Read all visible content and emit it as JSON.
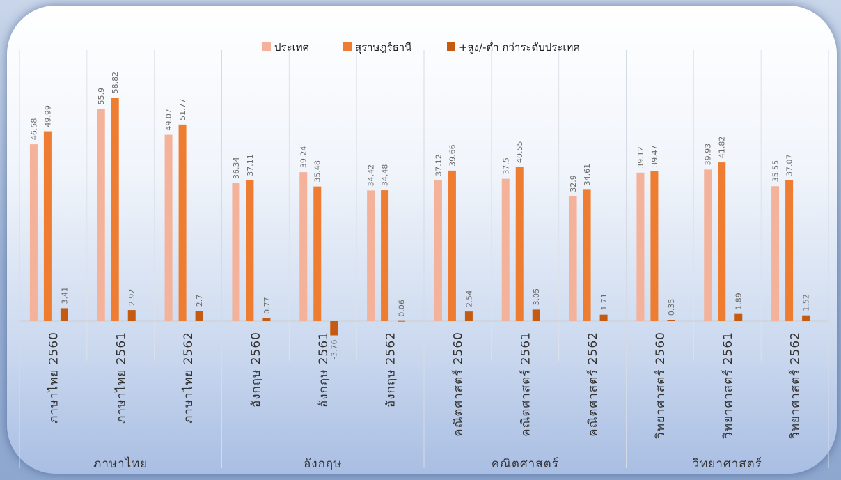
{
  "chart_data": {
    "type": "bar",
    "categories": [
      "ภาษาไทย 2560",
      "ภาษาไทย 2561",
      "ภาษาไทย 2562",
      "อังกฤษ 2560",
      "อังกฤษ 2561",
      "อังกฤษ 2562",
      "คณิตศาสตร์ 2560",
      "คณิตศาสตร์ 2561",
      "คณิตศาสตร์ 2562",
      "วิทยาศาสตร์ 2560",
      "วิทยาศาสตร์ 2561",
      "วิทยาศาสตร์ 2562"
    ],
    "groups": [
      "ภาษาไทย",
      "อังกฤษ",
      "คณิตศาสตร์",
      "วิทยาศาสตร์"
    ],
    "series": [
      {
        "name": "ประเทศ",
        "color": "#f4b29a",
        "values": [
          46.58,
          55.9,
          49.07,
          36.34,
          39.24,
          34.42,
          37.12,
          37.5,
          32.9,
          39.12,
          39.93,
          35.55
        ]
      },
      {
        "name": "สุราษฎร์ธานี",
        "color": "#ee7d31",
        "values": [
          49.99,
          58.82,
          51.77,
          37.11,
          35.48,
          34.48,
          39.66,
          40.55,
          34.61,
          39.47,
          41.82,
          37.07
        ]
      },
      {
        "name": "+สูง/-ต่ำ กว่าระดับประเทศ",
        "color": "#c55a11",
        "values": [
          3.41,
          2.92,
          2.7,
          0.77,
          -3.76,
          0.06,
          2.54,
          3.05,
          1.71,
          0.35,
          1.89,
          1.52
        ]
      }
    ],
    "value_labels": {
      "0": [
        "46.58",
        "55.9",
        "49.07",
        "36.34",
        "39.24",
        "34.42",
        "37.12",
        "37.5",
        "32.9",
        "39.12",
        "39.93",
        "35.55"
      ],
      "1": [
        "49.99",
        "58.82",
        "51.77",
        "37.11",
        "35.48",
        "34.48",
        "39.66",
        "40.55",
        "34.61",
        "39.47",
        "41.82",
        "37.07"
      ],
      "2": [
        "3.41",
        "2.92",
        "2.7",
        "0.77",
        "-3.76",
        "0.06",
        "2.54",
        "3.05",
        "1.71",
        "0.35",
        "1.89",
        "1.52"
      ]
    },
    "legend_position": "top-center",
    "grid": false,
    "ylim": [
      -4,
      62
    ]
  }
}
